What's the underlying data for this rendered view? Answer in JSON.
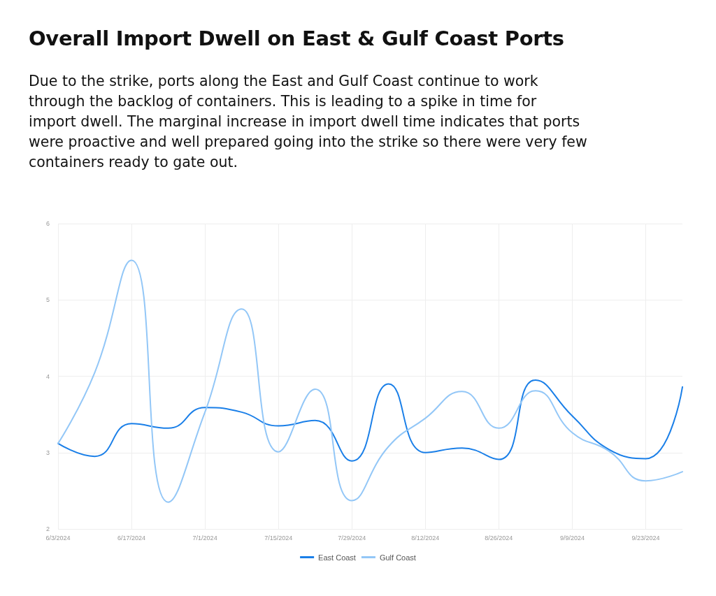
{
  "chart_data": {
    "type": "line",
    "title": "Overall Import Dwell on East & Gulf Coast Ports",
    "subtitle": "Due to the strike, ports along the East and Gulf Coast continue to work through the backlog of containers. This is leading to a spike in time for import dwell. The marginal increase in import dwell time indicates that ports were proactive and well prepared going into the strike so there were very few containers ready to gate out.",
    "categories": [
      "6/3/2024",
      null,
      "6/17/2024",
      null,
      "7/1/2024",
      null,
      "7/15/2024",
      null,
      "7/29/2024",
      null,
      "8/12/2024",
      null,
      "8/26/2024",
      null,
      "9/9/2024",
      null,
      "9/23/2024",
      null
    ],
    "series": [
      {
        "name": "East Coast",
        "color": "#1a7fe8",
        "values": [
          3.12,
          2.95,
          3.38,
          3.32,
          3.59,
          3.53,
          3.35,
          3.42,
          2.89,
          3.9,
          3.0,
          3.06,
          2.91,
          3.95,
          3.48,
          3.04,
          2.92,
          3.86
        ]
      },
      {
        "name": "Gulf Coast",
        "color": "#93c7f7",
        "values": [
          3.12,
          4.05,
          5.52,
          2.35,
          3.53,
          4.88,
          3.01,
          3.83,
          2.37,
          3.08,
          3.45,
          3.8,
          3.32,
          3.81,
          3.26,
          3.02,
          2.63,
          2.75
        ]
      }
    ],
    "ylim": [
      2,
      6
    ],
    "yticks": [
      2,
      3,
      4,
      5,
      6
    ],
    "grid": true,
    "legend": "bottom",
    "marker": "none",
    "line_style": "solid"
  }
}
